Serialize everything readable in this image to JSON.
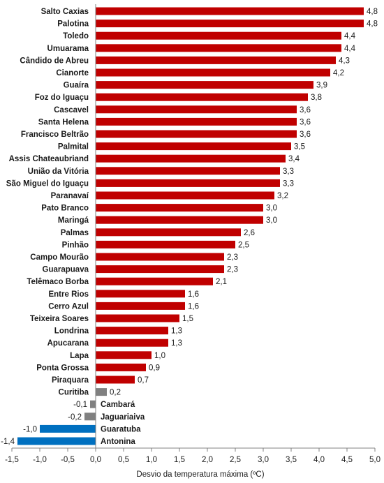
{
  "chart_data": {
    "type": "bar",
    "orientation": "horizontal",
    "xlabel": "Desvio da temperatura máxima (ºC)",
    "xlim": [
      -1.5,
      5.0
    ],
    "xticks": [
      "-1,5",
      "-1,0",
      "-0,5",
      "0,0",
      "0,5",
      "1,0",
      "1,5",
      "2,0",
      "2,5",
      "3,0",
      "3,5",
      "4,0",
      "4,5",
      "5,0"
    ],
    "grid": false,
    "colors": {
      "high": "#c00000",
      "low": "#808080",
      "negative": "#0070c0"
    },
    "categories": [
      "Salto Caxias",
      "Palotina",
      "Toledo",
      "Umuarama",
      "Cândido de Abreu",
      "Cianorte",
      "Guaíra",
      "Foz do Iguaçu",
      "Cascavel",
      "Santa Helena",
      "Francisco Beltrão",
      "Palmital",
      "Assis Chateaubriand",
      "União da Vitória",
      "São Miguel do Iguaçu",
      "Paranavaí",
      "Pato Branco",
      "Maringá",
      "Palmas",
      "Pinhão",
      "Campo Mourão",
      "Guarapuava",
      "Telêmaco Borba",
      "Entre Rios",
      "Cerro Azul",
      "Teixeira Soares",
      "Londrina",
      "Apucarana",
      "Lapa",
      "Ponta Grossa",
      "Piraquara",
      "Curitiba",
      "Cambará",
      "Jaguariaiva",
      "Guaratuba",
      "Antonina"
    ],
    "values": [
      4.8,
      4.8,
      4.4,
      4.4,
      4.3,
      4.2,
      3.9,
      3.8,
      3.6,
      3.6,
      3.6,
      3.5,
      3.4,
      3.3,
      3.3,
      3.2,
      3.0,
      3.0,
      2.6,
      2.5,
      2.3,
      2.3,
      2.1,
      1.6,
      1.6,
      1.5,
      1.3,
      1.3,
      1.0,
      0.9,
      0.7,
      0.2,
      -0.1,
      -0.2,
      -1.0,
      -1.4
    ],
    "value_labels": [
      "4,8",
      "4,8",
      "4,4",
      "4,4",
      "4,3",
      "4,2",
      "3,9",
      "3,8",
      "3,6",
      "3,6",
      "3,6",
      "3,5",
      "3,4",
      "3,3",
      "3,3",
      "3,2",
      "3,0",
      "3,0",
      "2,6",
      "2,5",
      "2,3",
      "2,3",
      "2,1",
      "1,6",
      "1,6",
      "1,5",
      "1,3",
      "1,3",
      "1,0",
      "0,9",
      "0,7",
      "0,2",
      "-0,1",
      "-0,2",
      "-1,0",
      "-1,4"
    ]
  }
}
